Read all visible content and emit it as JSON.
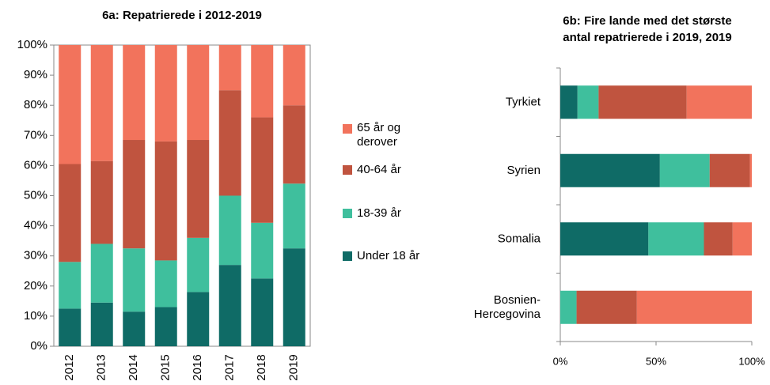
{
  "chart_data": [
    {
      "type": "stacked-bar",
      "title": "6a: Repatrierede i 2012-2019",
      "categories": [
        "2012",
        "2013",
        "2014",
        "2015",
        "2016",
        "2017",
        "2018",
        "2019"
      ],
      "series": [
        {
          "name": "Under 18 år",
          "color": "#0f6b66",
          "values": [
            12.5,
            14.5,
            11.5,
            13,
            18,
            27,
            22.5,
            32.5
          ]
        },
        {
          "name": "18-39 år",
          "color": "#3fbf9d",
          "values": [
            15.5,
            19.5,
            21,
            15.5,
            18,
            23,
            18.5,
            21.5
          ]
        },
        {
          "name": "40-64 år",
          "color": "#c0543f",
          "values": [
            32.5,
            27.5,
            36,
            39.5,
            32.5,
            35,
            35,
            26
          ]
        },
        {
          "name": "65 år og derover",
          "color": "#f2735c",
          "values": [
            39.5,
            38.5,
            31.5,
            32,
            31.5,
            15,
            24,
            20
          ]
        }
      ],
      "ylim": [
        0,
        100
      ],
      "yticks": [
        {
          "value": 0,
          "label": "0%"
        },
        {
          "value": 10,
          "label": "10%"
        },
        {
          "value": 20,
          "label": "20%"
        },
        {
          "value": 30,
          "label": "30%"
        },
        {
          "value": 40,
          "label": "40%"
        },
        {
          "value": 50,
          "label": "50%"
        },
        {
          "value": 60,
          "label": "60%"
        },
        {
          "value": 70,
          "label": "70%"
        },
        {
          "value": 80,
          "label": "80%"
        },
        {
          "value": 90,
          "label": "90%"
        },
        {
          "value": 100,
          "label": "100%"
        }
      ]
    },
    {
      "type": "stacked-barh",
      "title": [
        "6b: Fire lande med det største",
        "antal repatrierede i 2019, 2019"
      ],
      "categories": [
        "Tyrkiet",
        "Syrien",
        "Somalia",
        "Bosnien-Hercegovina"
      ],
      "series": [
        {
          "color": "#0f6b66",
          "values": [
            9,
            52,
            46,
            0
          ]
        },
        {
          "color": "#3fbf9d",
          "values": [
            11,
            26,
            29,
            8.5
          ]
        },
        {
          "color": "#c0543f",
          "values": [
            46,
            21,
            15,
            31.5
          ]
        },
        {
          "color": "#f2735c",
          "values": [
            34,
            1,
            10,
            60
          ]
        }
      ],
      "xlim": [
        0,
        100
      ],
      "xticks": [
        {
          "value": 0,
          "label": "0%"
        },
        {
          "value": 50,
          "label": "50%"
        },
        {
          "value": 100,
          "label": "100%"
        }
      ]
    }
  ]
}
